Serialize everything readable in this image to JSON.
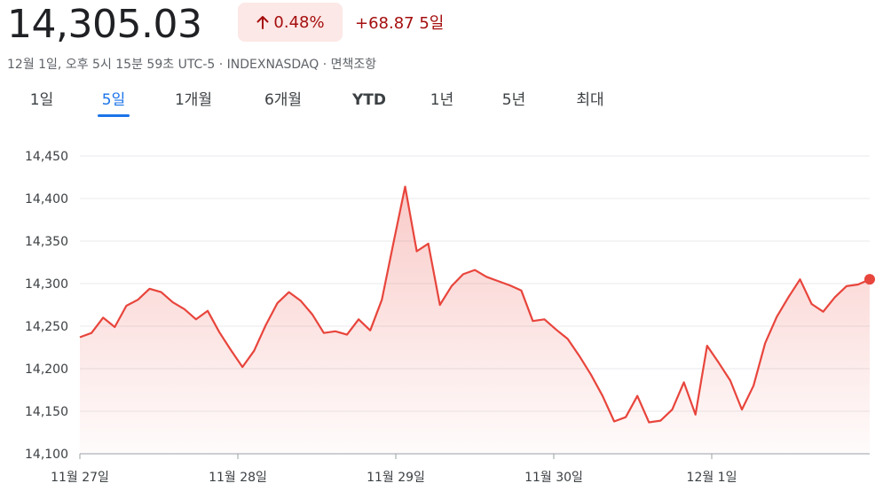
{
  "quote": {
    "price": "14,305.03",
    "change_pct": "0.48%",
    "change_abs": "+68.87",
    "period": "5일",
    "meta": "12월 1일, 오후 5시 15분 59초 UTC-5 · INDEXNASDAQ · 면책조항",
    "trend_icon": "arrow-up-icon"
  },
  "tabs": [
    {
      "label": "1일",
      "active": false
    },
    {
      "label": "5일",
      "active": true
    },
    {
      "label": "1개월",
      "active": false
    },
    {
      "label": "6개월",
      "active": false
    },
    {
      "label": "YTD",
      "active": false
    },
    {
      "label": "1년",
      "active": false
    },
    {
      "label": "5년",
      "active": false
    },
    {
      "label": "최대",
      "active": false
    }
  ],
  "colors": {
    "line": "#e8453c",
    "fill": "#fbe4e2",
    "grid": "#e8eaed",
    "accent": "#1a73e8",
    "negative_text": "#a50e0e"
  },
  "chart_data": {
    "type": "area",
    "ylim": [
      14100,
      14450
    ],
    "y_ticks": [
      "14,100",
      "14,150",
      "14,200",
      "14,250",
      "14,300",
      "14,350",
      "14,400",
      "14,450"
    ],
    "x_tick_labels": [
      "11월 27일",
      "11월 28일",
      "11월 29일",
      "11월 30일",
      "12월 1일"
    ],
    "grid": true,
    "series": [
      {
        "values": [
          14237,
          14242,
          14260,
          14249,
          14274,
          14281,
          14294,
          14290,
          14278,
          14270,
          14258,
          14268,
          14243,
          14222,
          14202,
          14221,
          14251,
          14277,
          14290,
          14280,
          14264,
          14242,
          14244,
          14240,
          14258,
          14245,
          14281,
          14348,
          14414,
          14338,
          14347,
          14275,
          14297,
          14311,
          14316,
          14308,
          14303,
          14298,
          14292,
          14256,
          14258,
          14246,
          14235,
          14215,
          14193,
          14168,
          14138,
          14143,
          14168,
          14137,
          14139,
          14152,
          14184,
          14146,
          14227,
          14207,
          14186,
          14152,
          14180,
          14230,
          14261,
          14284,
          14305,
          14276,
          14267,
          14284,
          14297,
          14299,
          14305.03
        ]
      }
    ]
  }
}
